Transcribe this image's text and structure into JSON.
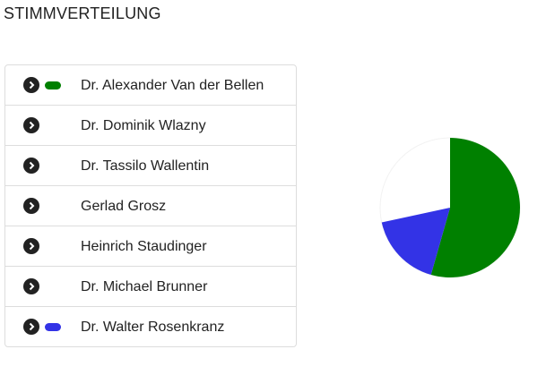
{
  "chart_data": {
    "type": "pie",
    "title": "STIMMVERTEILUNG",
    "categories": [
      "Dr. Alexander Van der Bellen",
      "Dr. Dominik Wlazny",
      "Dr. Tassilo Wallentin",
      "Gerlad Grosz",
      "Heinrich Staudinger",
      "Dr. Michael Brunner",
      "Dr. Walter Rosenkranz"
    ],
    "values": [
      54.4,
      null,
      null,
      null,
      null,
      null,
      17.2
    ],
    "colors": [
      "#008000",
      null,
      null,
      null,
      null,
      null,
      "#3333e6"
    ]
  }
}
